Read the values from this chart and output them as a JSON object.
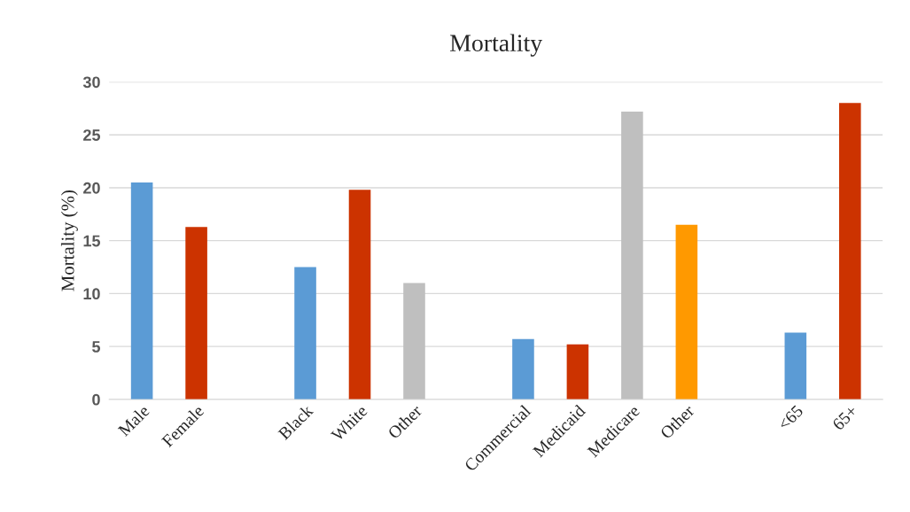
{
  "chart_data": {
    "type": "bar",
    "title": "Mortality",
    "ylabel": "Mortality (%)",
    "categories": [
      "Male",
      "Female",
      null,
      "Black",
      "White",
      "Other",
      null,
      "Commercial",
      "Medicaid",
      "Medicare",
      "Other",
      null,
      "<65",
      "65+"
    ],
    "values": [
      20.5,
      16.3,
      null,
      12.5,
      19.8,
      11.0,
      null,
      5.7,
      5.2,
      27.2,
      16.5,
      null,
      6.3,
      28.0
    ],
    "colors": [
      "#5b9bd5",
      "#cc3300",
      "#ffffff",
      "#5b9bd5",
      "#cc3300",
      "#bfbfbf",
      "#ffffff",
      "#5b9bd5",
      "#cc3300",
      "#bfbfbf",
      "#ff9900",
      "#ffffff",
      "#5b9bd5",
      "#cc3300"
    ],
    "ylim": [
      0,
      30
    ],
    "yticks": [
      0,
      5,
      10,
      15,
      20,
      25,
      30
    ],
    "grid": "y"
  }
}
